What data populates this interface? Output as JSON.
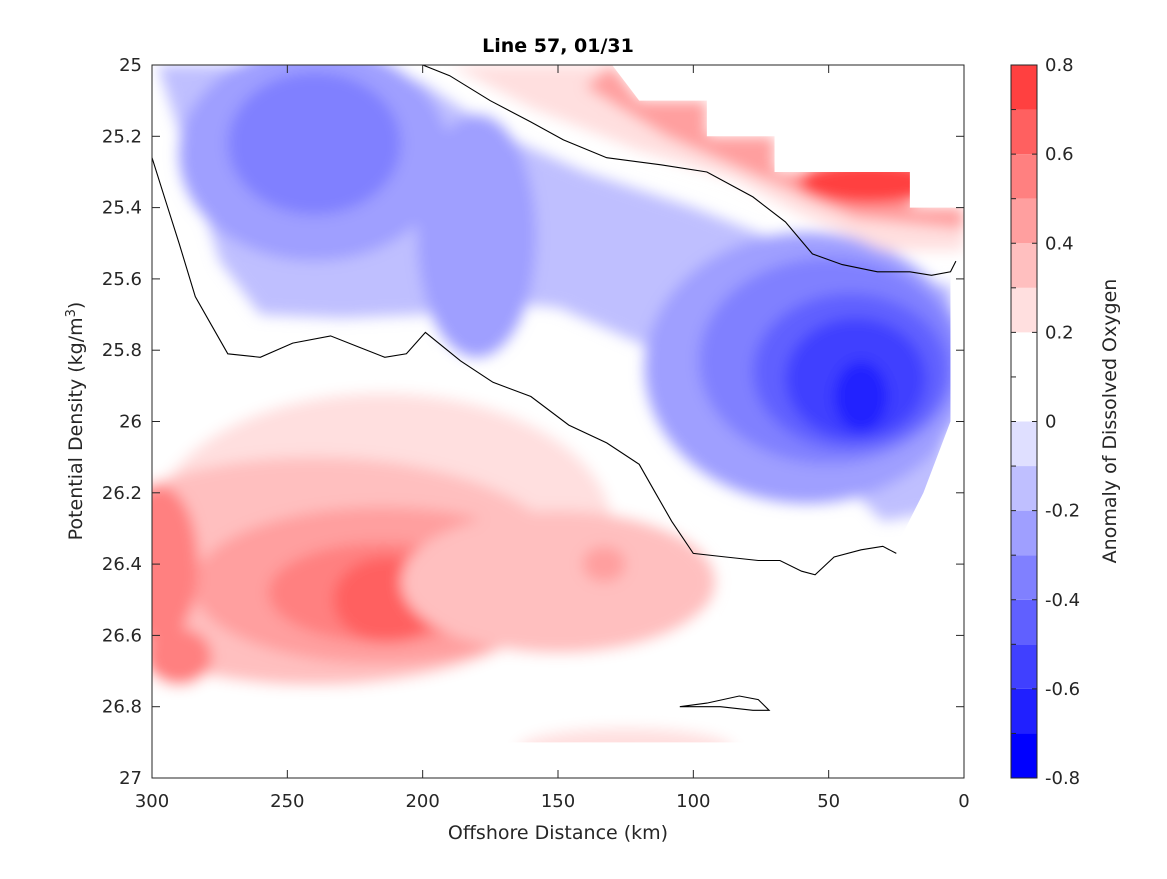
{
  "chart_data": {
    "type": "heatmap",
    "subtype": "filled-contour",
    "title": "Line 57, 01/31",
    "xlabel": "Offshore Distance (km)",
    "ylabel_main": "Potential Density (kg/m",
    "ylabel_sup": "3",
    "ylabel_close": ")",
    "colorbar_label": "Anomaly of Dissolved Oxygen",
    "x_reversed": true,
    "y_reversed": true,
    "xlim": [
      0,
      300
    ],
    "ylim": [
      25,
      27
    ],
    "xticks": [
      300,
      250,
      200,
      150,
      100,
      50,
      0
    ],
    "xtick_labels": [
      "300",
      "250",
      "200",
      "150",
      "100",
      "50",
      "0"
    ],
    "yticks": [
      25,
      25.2,
      25.4,
      25.6,
      25.8,
      26,
      26.2,
      26.4,
      26.6,
      26.8,
      27
    ],
    "ytick_labels": [
      "25",
      "25.2",
      "25.4",
      "25.6",
      "25.8",
      "26",
      "26.2",
      "26.4",
      "26.6",
      "26.8",
      "27"
    ],
    "colorbar": {
      "clim": [
        -0.8,
        0.8
      ],
      "levels": [
        -0.8,
        -0.7,
        -0.6,
        -0.5,
        -0.4,
        -0.3,
        -0.2,
        -0.1,
        0,
        0.1,
        0.2,
        0.3,
        0.4,
        0.5,
        0.6,
        0.7,
        0.8
      ],
      "tick_values": [
        0.8,
        0.6,
        0.4,
        0.2,
        0,
        -0.2,
        -0.4,
        -0.6,
        -0.8
      ],
      "tick_labels": [
        "0.8",
        "0.6",
        "0.4",
        "0.2",
        "0",
        "-0.2",
        "-0.4",
        "-0.6",
        "-0.8"
      ],
      "colors": [
        "#0000ff",
        "#2020ff",
        "#4040ff",
        "#6060ff",
        "#8080ff",
        "#9f9fff",
        "#bfbfff",
        "#dfdfff",
        "#ffffff",
        "#ffffff",
        "#ffdfdf",
        "#ffbfbf",
        "#ff9f9f",
        "#ff8080",
        "#ff6060",
        "#ff4040",
        "#ff2020",
        "#ff0000"
      ]
    },
    "zero_contour": [
      [
        [
          300,
          25.26
        ],
        [
          295,
          25.38
        ],
        [
          290,
          25.5
        ],
        [
          284,
          25.65
        ],
        [
          278,
          25.73
        ],
        [
          272,
          25.81
        ],
        [
          260,
          25.82
        ],
        [
          248,
          25.78
        ],
        [
          234,
          25.76
        ],
        [
          224,
          25.79
        ],
        [
          214,
          25.82
        ],
        [
          206,
          25.81
        ],
        [
          199,
          25.75
        ],
        [
          186,
          25.83
        ],
        [
          174,
          25.89
        ],
        [
          160,
          25.93
        ],
        [
          146,
          26.01
        ],
        [
          132,
          26.06
        ],
        [
          120,
          26.12
        ],
        [
          114,
          26.2
        ],
        [
          108,
          26.28
        ],
        [
          100,
          26.37
        ],
        [
          88,
          26.38
        ],
        [
          76,
          26.39
        ],
        [
          68,
          26.39
        ],
        [
          60,
          26.42
        ],
        [
          55,
          26.43
        ],
        [
          48,
          26.38
        ],
        [
          38,
          26.36
        ],
        [
          30,
          26.35
        ],
        [
          25,
          26.37
        ]
      ],
      [
        [
          200,
          25.0
        ],
        [
          190,
          25.03
        ],
        [
          175,
          25.1
        ],
        [
          160,
          25.16
        ],
        [
          148,
          25.21
        ],
        [
          132,
          25.26
        ],
        [
          112,
          25.28
        ],
        [
          95,
          25.3
        ],
        [
          78,
          25.37
        ],
        [
          66,
          25.44
        ],
        [
          56,
          25.53
        ],
        [
          45,
          25.56
        ],
        [
          32,
          25.58
        ],
        [
          20,
          25.58
        ],
        [
          12,
          25.59
        ],
        [
          5,
          25.58
        ],
        [
          3,
          25.55
        ]
      ],
      [
        [
          105,
          26.8
        ],
        [
          95,
          26.79
        ],
        [
          83,
          26.77
        ],
        [
          76,
          26.78
        ],
        [
          72,
          26.81
        ],
        [
          78,
          26.81
        ],
        [
          90,
          26.8
        ],
        [
          105,
          26.8
        ]
      ]
    ]
  }
}
